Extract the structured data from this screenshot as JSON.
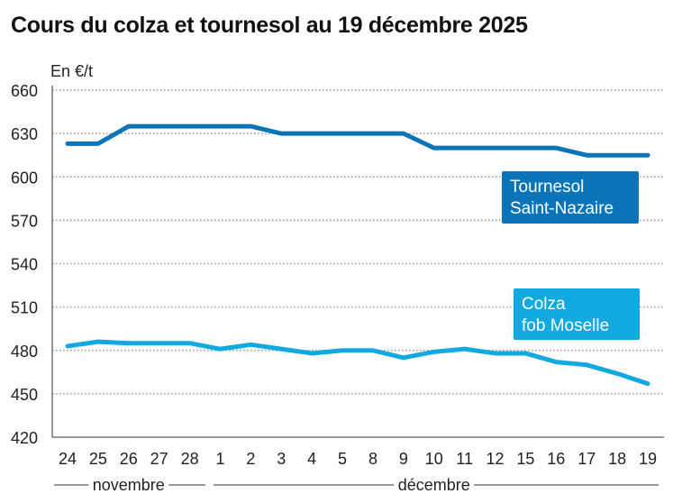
{
  "chart_data": {
    "type": "line",
    "title": "Cours du colza et tournesol au 19 décembre 2025",
    "ylabel": "En €/t",
    "ylim": [
      420,
      660
    ],
    "yticks": [
      420,
      450,
      480,
      510,
      540,
      570,
      600,
      630,
      660
    ],
    "grid": true,
    "categories": [
      "24",
      "25",
      "26",
      "27",
      "28",
      "1",
      "2",
      "3",
      "4",
      "5",
      "8",
      "9",
      "10",
      "11",
      "12",
      "15",
      "16",
      "17",
      "18",
      "19"
    ],
    "month_groups": [
      {
        "label": "novembre",
        "from": 0,
        "to": 4
      },
      {
        "label": "décembre",
        "from": 5,
        "to": 19
      }
    ],
    "series": [
      {
        "name_lines": [
          "Tournesol",
          "Saint-Nazaire"
        ],
        "color": "#0a74b9",
        "values": [
          623,
          623,
          635,
          635,
          635,
          635,
          635,
          630,
          630,
          630,
          630,
          630,
          620,
          620,
          620,
          620,
          620,
          615,
          615,
          615
        ]
      },
      {
        "name_lines": [
          "Colza",
          "fob Moselle"
        ],
        "color": "#12a8e0",
        "values": [
          483,
          486,
          485,
          485,
          485,
          481,
          484,
          481,
          478,
          480,
          480,
          475,
          479,
          481,
          478,
          478,
          472,
          470,
          464,
          457
        ]
      }
    ]
  }
}
